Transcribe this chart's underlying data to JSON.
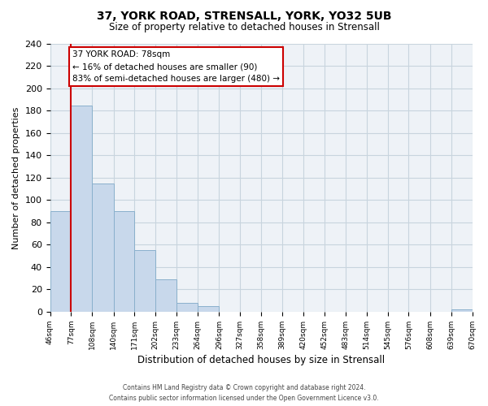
{
  "title": "37, YORK ROAD, STRENSALL, YORK, YO32 5UB",
  "subtitle": "Size of property relative to detached houses in Strensall",
  "xlabel": "Distribution of detached houses by size in Strensall",
  "ylabel": "Number of detached properties",
  "bin_edges": [
    46,
    77,
    108,
    140,
    171,
    202,
    233,
    264,
    296,
    327,
    358,
    389,
    420,
    452,
    483,
    514,
    545,
    576,
    608,
    639,
    670
  ],
  "bin_labels": [
    "46sqm",
    "77sqm",
    "108sqm",
    "140sqm",
    "171sqm",
    "202sqm",
    "233sqm",
    "264sqm",
    "296sqm",
    "327sqm",
    "358sqm",
    "389sqm",
    "420sqm",
    "452sqm",
    "483sqm",
    "514sqm",
    "545sqm",
    "576sqm",
    "608sqm",
    "639sqm",
    "670sqm"
  ],
  "counts": [
    90,
    185,
    115,
    90,
    55,
    29,
    8,
    5,
    0,
    0,
    0,
    0,
    0,
    0,
    0,
    0,
    0,
    0,
    0,
    2
  ],
  "bar_color": "#c8d8eb",
  "bar_edge_color": "#8ab0cc",
  "vline_x": 77,
  "vline_color": "#cc0000",
  "ylim": [
    0,
    240
  ],
  "yticks": [
    0,
    20,
    40,
    60,
    80,
    100,
    120,
    140,
    160,
    180,
    200,
    220,
    240
  ],
  "annotation_title": "37 YORK ROAD: 78sqm",
  "annotation_line1": "← 16% of detached houses are smaller (90)",
  "annotation_line2": "83% of semi-detached houses are larger (480) →",
  "annotation_box_color": "#ffffff",
  "annotation_box_edge": "#cc0000",
  "footer1": "Contains HM Land Registry data © Crown copyright and database right 2024.",
  "footer2": "Contains public sector information licensed under the Open Government Licence v3.0.",
  "bg_color": "#ffffff",
  "plot_bg_color": "#eef2f7",
  "grid_color": "#c8d4de"
}
